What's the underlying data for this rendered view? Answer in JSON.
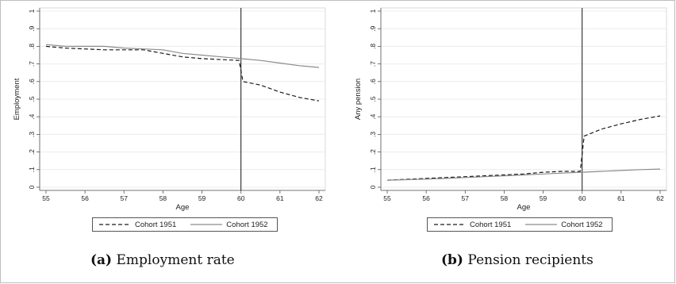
{
  "captions": [
    {
      "tag": "(a)",
      "text": "Employment rate"
    },
    {
      "tag": "(b)",
      "text": "Pension recipients"
    }
  ],
  "legend": [
    {
      "label": "Cohort 1951",
      "style": "dashed",
      "color": "#1a1a1a"
    },
    {
      "label": "Cohort 1952",
      "style": "solid",
      "color": "#8c8c8c"
    }
  ],
  "chart_data": [
    {
      "type": "line",
      "xlabel": "Age",
      "ylabel": "Employment",
      "xlim": [
        55,
        62
      ],
      "ylim": [
        0,
        1
      ],
      "xticks": [
        "55",
        "56",
        "57",
        "58",
        "59",
        "60",
        "61",
        "62"
      ],
      "yticks": [
        "0",
        ".1",
        ".2",
        ".3",
        ".4",
        ".5",
        ".6",
        ".7",
        ".8",
        ".9",
        "1"
      ],
      "vline": 60,
      "legend_position": "bottom",
      "series": [
        {
          "name": "Cohort 1951",
          "x": [
            55,
            55.5,
            56,
            56.5,
            57,
            57.5,
            58,
            58.5,
            59,
            59.5,
            59.95,
            60.05,
            60.5,
            61,
            61.5,
            62
          ],
          "y": [
            0.8,
            0.79,
            0.785,
            0.78,
            0.78,
            0.78,
            0.76,
            0.74,
            0.73,
            0.725,
            0.72,
            0.6,
            0.58,
            0.54,
            0.51,
            0.49
          ]
        },
        {
          "name": "Cohort 1952",
          "x": [
            55,
            55.5,
            56,
            56.5,
            57,
            57.5,
            58,
            58.5,
            59,
            59.5,
            60,
            60.5,
            61,
            61.5,
            62
          ],
          "y": [
            0.81,
            0.8,
            0.8,
            0.8,
            0.79,
            0.785,
            0.78,
            0.76,
            0.75,
            0.74,
            0.73,
            0.72,
            0.705,
            0.69,
            0.68
          ]
        }
      ]
    },
    {
      "type": "line",
      "xlabel": "Age",
      "ylabel": "Any pension",
      "xlim": [
        55,
        62
      ],
      "ylim": [
        0,
        1
      ],
      "xticks": [
        "55",
        "56",
        "57",
        "58",
        "59",
        "60",
        "61",
        "62"
      ],
      "yticks": [
        "0",
        ".1",
        ".2",
        ".3",
        ".4",
        ".5",
        ".6",
        ".7",
        ".8",
        ".9",
        "1"
      ],
      "vline": 60,
      "legend_position": "bottom",
      "series": [
        {
          "name": "Cohort 1951",
          "x": [
            55,
            55.5,
            56,
            56.5,
            57,
            57.5,
            58,
            58.5,
            59,
            59.5,
            59.95,
            60.05,
            60.5,
            61,
            61.5,
            62
          ],
          "y": [
            0.04,
            0.045,
            0.05,
            0.055,
            0.06,
            0.065,
            0.07,
            0.075,
            0.085,
            0.09,
            0.09,
            0.29,
            0.33,
            0.36,
            0.385,
            0.405
          ]
        },
        {
          "name": "Cohort 1952",
          "x": [
            55,
            55.5,
            56,
            56.5,
            57,
            57.5,
            58,
            58.5,
            59,
            59.5,
            60,
            60.5,
            61,
            61.5,
            62
          ],
          "y": [
            0.04,
            0.043,
            0.046,
            0.05,
            0.055,
            0.06,
            0.065,
            0.07,
            0.075,
            0.08,
            0.085,
            0.09,
            0.095,
            0.1,
            0.103
          ]
        }
      ]
    }
  ]
}
